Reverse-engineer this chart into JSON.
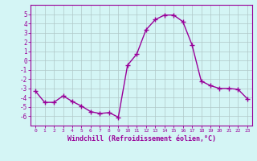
{
  "x": [
    0,
    1,
    2,
    3,
    4,
    5,
    6,
    7,
    8,
    9,
    10,
    11,
    12,
    13,
    14,
    15,
    16,
    17,
    18,
    19,
    20,
    21,
    22,
    23
  ],
  "y": [
    -3.3,
    -4.5,
    -4.5,
    -3.8,
    -4.4,
    -4.9,
    -5.5,
    -5.7,
    -5.6,
    -6.1,
    -0.5,
    0.7,
    3.3,
    4.4,
    4.9,
    4.9,
    4.2,
    1.7,
    -2.2,
    -2.7,
    -3.0,
    -3.0,
    -3.1,
    -4.1
  ],
  "line_color": "#990099",
  "marker": "+",
  "markersize": 4,
  "linewidth": 1.0,
  "bg_color": "#d4f5f5",
  "grid_color": "#b0c8c8",
  "xlabel": "Windchill (Refroidissement éolien,°C)",
  "ylim": [
    -7,
    6
  ],
  "xlim": [
    -0.5,
    23.5
  ],
  "yticks": [
    -6,
    -5,
    -4,
    -3,
    -2,
    -1,
    0,
    1,
    2,
    3,
    4,
    5
  ],
  "xticks": [
    0,
    1,
    2,
    3,
    4,
    5,
    6,
    7,
    8,
    9,
    10,
    11,
    12,
    13,
    14,
    15,
    16,
    17,
    18,
    19,
    20,
    21,
    22,
    23
  ],
  "tick_color": "#990099",
  "label_color": "#990099",
  "spine_color": "#990099"
}
